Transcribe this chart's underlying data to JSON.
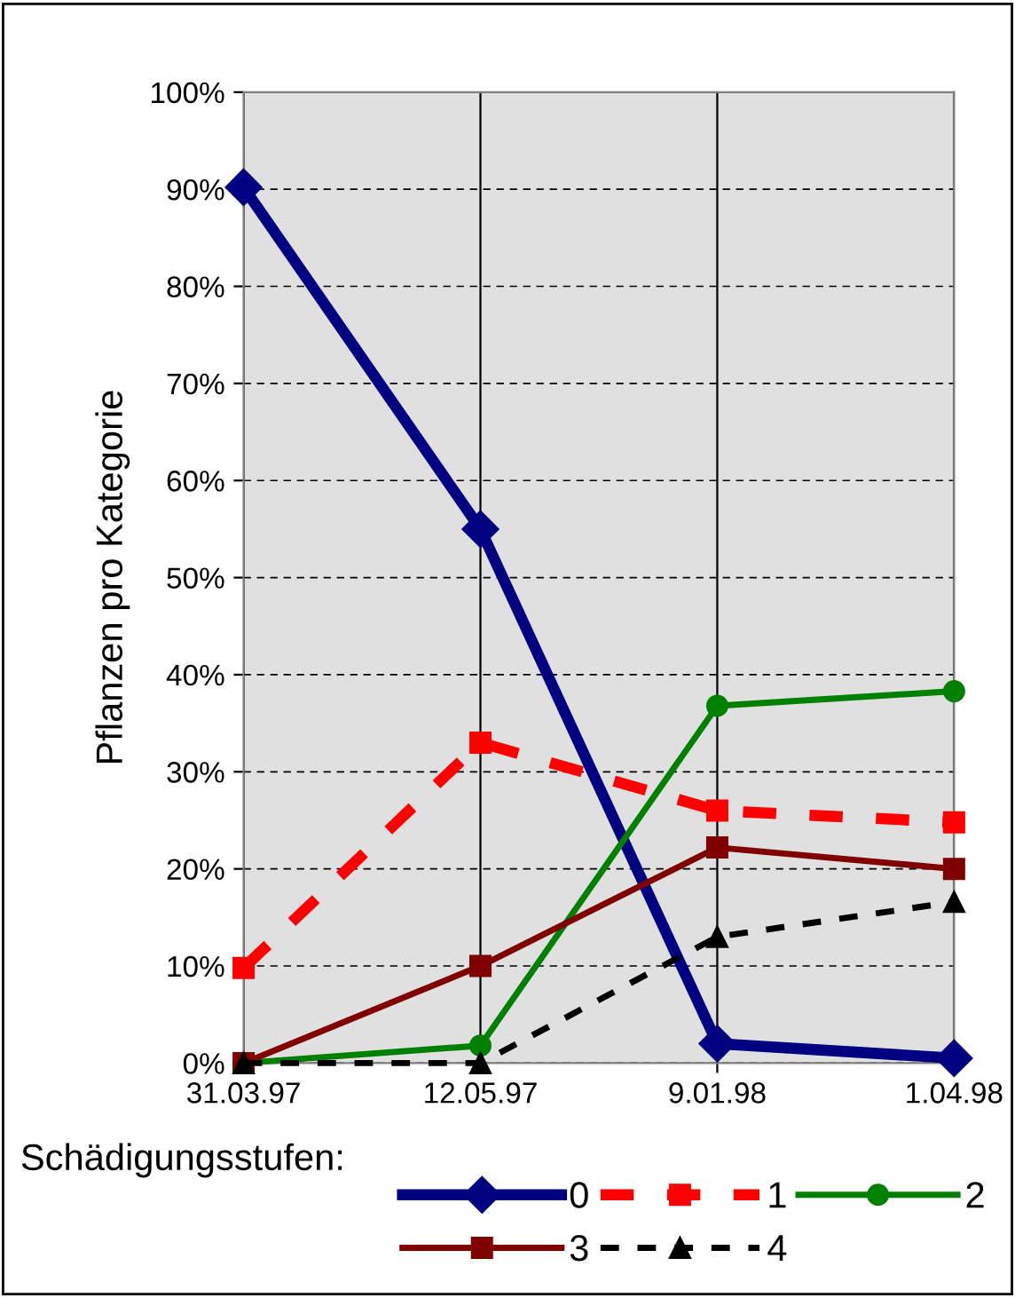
{
  "chart_data": {
    "type": "line",
    "categories": [
      "31.03.97",
      "12.05.97",
      "9.01.98",
      "1.04.98"
    ],
    "ylabel": "Pflanzen pro Kategorie",
    "legend_title": "Schädigungsstufen:",
    "legend": "bottom",
    "grid": true,
    "ylim": [
      0,
      100
    ],
    "yticks": [
      {
        "value": 0,
        "label": "0%"
      },
      {
        "value": 10,
        "label": "10%"
      },
      {
        "value": 20,
        "label": "20%"
      },
      {
        "value": 30,
        "label": "30%"
      },
      {
        "value": 40,
        "label": "40%"
      },
      {
        "value": 50,
        "label": "50%"
      },
      {
        "value": 60,
        "label": "60%"
      },
      {
        "value": 70,
        "label": "70%"
      },
      {
        "value": 80,
        "label": "80%"
      },
      {
        "value": 90,
        "label": "90%"
      },
      {
        "value": 100,
        "label": "100%"
      }
    ],
    "series": [
      {
        "name": "0",
        "color": "#000080",
        "marker": "diamond",
        "line_style": "solid",
        "values": [
          90.2,
          55.0,
          2.0,
          0.5
        ]
      },
      {
        "name": "1",
        "color": "#ff0000",
        "marker": "square",
        "line_style": "dashed",
        "values": [
          9.8,
          33.0,
          26.0,
          24.8
        ]
      },
      {
        "name": "2",
        "color": "#008000",
        "marker": "circle",
        "line_style": "solid",
        "values": [
          0,
          1.8,
          36.8,
          38.3
        ]
      },
      {
        "name": "3",
        "color": "#800000",
        "marker": "square",
        "line_style": "solid",
        "values": [
          0,
          10.0,
          22.2,
          20.0
        ]
      },
      {
        "name": "4",
        "color": "#000000",
        "marker": "triangle",
        "line_style": "dashed",
        "values": [
          0,
          0,
          13.0,
          16.6
        ]
      }
    ]
  }
}
